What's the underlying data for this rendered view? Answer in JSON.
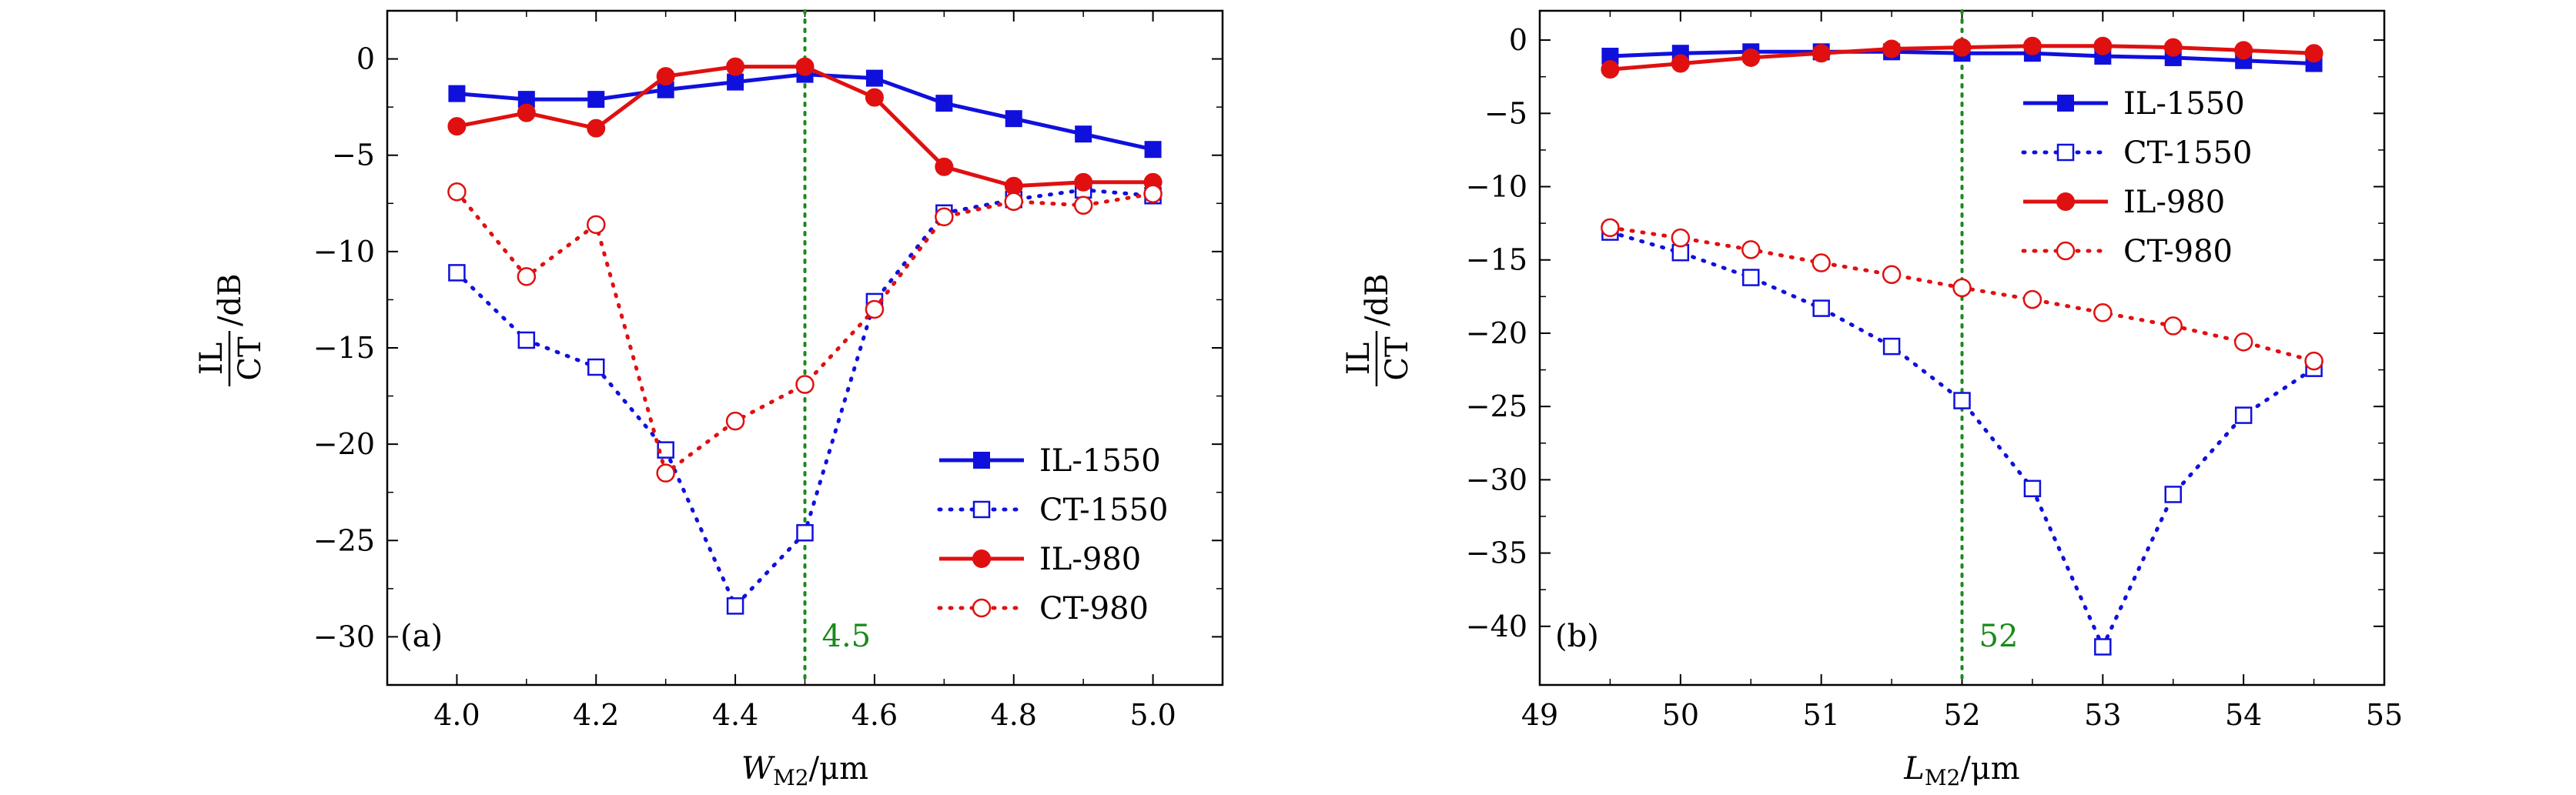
{
  "chart_data": [
    {
      "type": "line",
      "panel_label": "(a)",
      "xlabel": "W",
      "xlabel_sub": "M2",
      "xlabel_unit": "/μm",
      "ylabel_num": "IL",
      "ylabel_den": "CT",
      "ylabel_unit": "/dB",
      "xlim": [
        3.9,
        5.1
      ],
      "ylim": [
        -32.5,
        2.5
      ],
      "xticks": [
        4.0,
        4.2,
        4.4,
        4.6,
        4.8,
        5.0
      ],
      "xtick_labels": [
        "4.0",
        "4.2",
        "4.4",
        "4.6",
        "4.8",
        "5.0"
      ],
      "yticks": [
        0,
        -5,
        -10,
        -15,
        -20,
        -25,
        -30
      ],
      "ytick_labels": [
        "0",
        "−5",
        "−10",
        "−15",
        "−20",
        "−25",
        "−30"
      ],
      "vline": {
        "x": 4.5,
        "label": "4.5",
        "color": "#1a8a1a"
      },
      "legend": "lower-right",
      "x": [
        4.0,
        4.1,
        4.2,
        4.3,
        4.4,
        4.5,
        4.6,
        4.7,
        4.8,
        4.9,
        5.0
      ],
      "series": [
        {
          "name": "IL-1550",
          "color": "#1010dd",
          "style": "solid",
          "marker": "filled-square",
          "values": [
            -1.8,
            -2.1,
            -2.1,
            -1.6,
            -1.2,
            -0.8,
            -1.0,
            -2.3,
            -3.1,
            -3.9,
            -4.7
          ]
        },
        {
          "name": "CT-1550",
          "color": "#1010dd",
          "style": "dotted",
          "marker": "open-square",
          "values": [
            -11.1,
            -14.6,
            -16.0,
            -20.3,
            -28.4,
            -24.6,
            -12.6,
            -8.0,
            -7.3,
            -6.8,
            -7.1
          ]
        },
        {
          "name": "IL-980",
          "color": "#e01010",
          "style": "solid",
          "marker": "filled-circle",
          "values": [
            -3.5,
            -2.8,
            -3.6,
            -0.9,
            -0.4,
            -0.4,
            -2.0,
            -5.6,
            -6.6,
            -6.4,
            -6.4
          ]
        },
        {
          "name": "CT-980",
          "color": "#e01010",
          "style": "dotted",
          "marker": "open-circle",
          "values": [
            -6.9,
            -11.3,
            -8.6,
            -21.5,
            -18.8,
            -16.9,
            -13.0,
            -8.2,
            -7.4,
            -7.6,
            -7.0
          ]
        }
      ]
    },
    {
      "type": "line",
      "panel_label": "(b)",
      "xlabel": "L",
      "xlabel_sub": "M2",
      "xlabel_unit": "/μm",
      "ylabel_num": "IL",
      "ylabel_den": "CT",
      "ylabel_unit": "/dB",
      "xlim": [
        49,
        55
      ],
      "ylim": [
        -44,
        2
      ],
      "xticks": [
        49,
        50,
        51,
        52,
        53,
        54,
        55
      ],
      "xtick_labels": [
        "49",
        "50",
        "51",
        "52",
        "53",
        "54",
        "55"
      ],
      "yticks": [
        0,
        -5,
        -10,
        -15,
        -20,
        -25,
        -30,
        -35,
        -40
      ],
      "ytick_labels": [
        "0",
        "−5",
        "−10",
        "−15",
        "−20",
        "−25",
        "−30",
        "−35",
        "−40"
      ],
      "vline": {
        "x": 52,
        "label": "52",
        "color": "#1a8a1a"
      },
      "legend": "top-right",
      "x": [
        49.5,
        50.0,
        50.5,
        51.0,
        51.5,
        52.0,
        52.5,
        53.0,
        53.5,
        54.0,
        54.5
      ],
      "series": [
        {
          "name": "IL-1550",
          "color": "#1010dd",
          "style": "solid",
          "marker": "filled-square",
          "values": [
            -1.1,
            -0.9,
            -0.8,
            -0.8,
            -0.8,
            -0.9,
            -0.9,
            -1.1,
            -1.2,
            -1.4,
            -1.6
          ]
        },
        {
          "name": "CT-1550",
          "color": "#1010dd",
          "style": "dotted",
          "marker": "open-square",
          "values": [
            -13.1,
            -14.5,
            -16.2,
            -18.3,
            -20.9,
            -24.6,
            -30.6,
            -41.4,
            -31.0,
            -25.6,
            -22.4
          ]
        },
        {
          "name": "IL-980",
          "color": "#e01010",
          "style": "solid",
          "marker": "filled-circle",
          "values": [
            -2.0,
            -1.6,
            -1.2,
            -0.9,
            -0.6,
            -0.5,
            -0.4,
            -0.4,
            -0.5,
            -0.7,
            -0.9
          ]
        },
        {
          "name": "CT-980",
          "color": "#e01010",
          "style": "dotted",
          "marker": "open-circle",
          "values": [
            -12.8,
            -13.5,
            -14.3,
            -15.2,
            -16.0,
            -16.9,
            -17.7,
            -18.6,
            -19.5,
            -20.6,
            -21.9
          ]
        }
      ]
    }
  ]
}
